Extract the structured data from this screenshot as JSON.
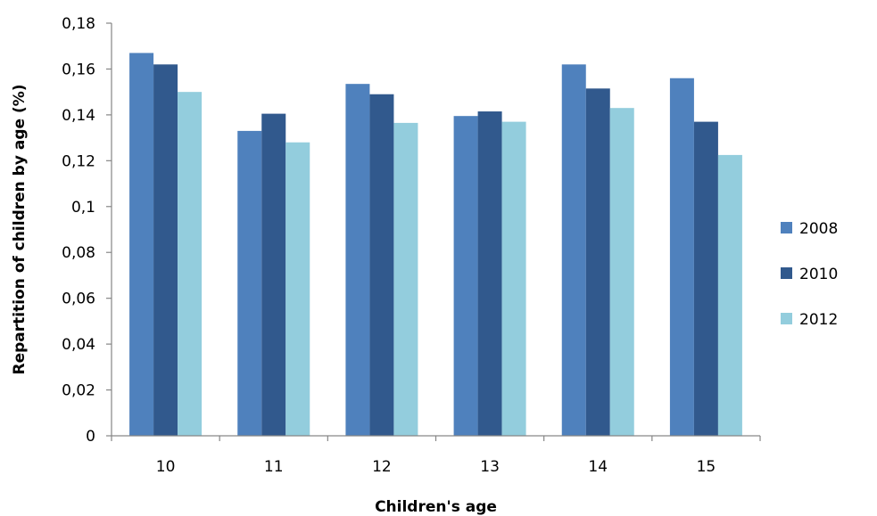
{
  "chart_data": {
    "type": "bar",
    "title": "",
    "xlabel": "Children's age",
    "ylabel": "Repartition of children by age (%)",
    "categories": [
      "10",
      "11",
      "12",
      "13",
      "14",
      "15"
    ],
    "series": [
      {
        "name": "2008",
        "color": "#4F81BD",
        "values": [
          0.167,
          0.133,
          0.1535,
          0.1395,
          0.162,
          0.156
        ]
      },
      {
        "name": "2010",
        "color": "#31598D",
        "values": [
          0.162,
          0.1405,
          0.149,
          0.1415,
          0.1515,
          0.137
        ]
      },
      {
        "name": "2012",
        "color": "#93CDDD",
        "values": [
          0.15,
          0.128,
          0.1365,
          0.137,
          0.143,
          0.1225
        ]
      }
    ],
    "ylim": [
      0,
      0.18
    ],
    "yticks": [
      "0",
      "0,02",
      "0,04",
      "0,06",
      "0,08",
      "0,1",
      "0,12",
      "0,14",
      "0,16",
      "0,18"
    ],
    "grid": false,
    "legend_position": "right"
  }
}
